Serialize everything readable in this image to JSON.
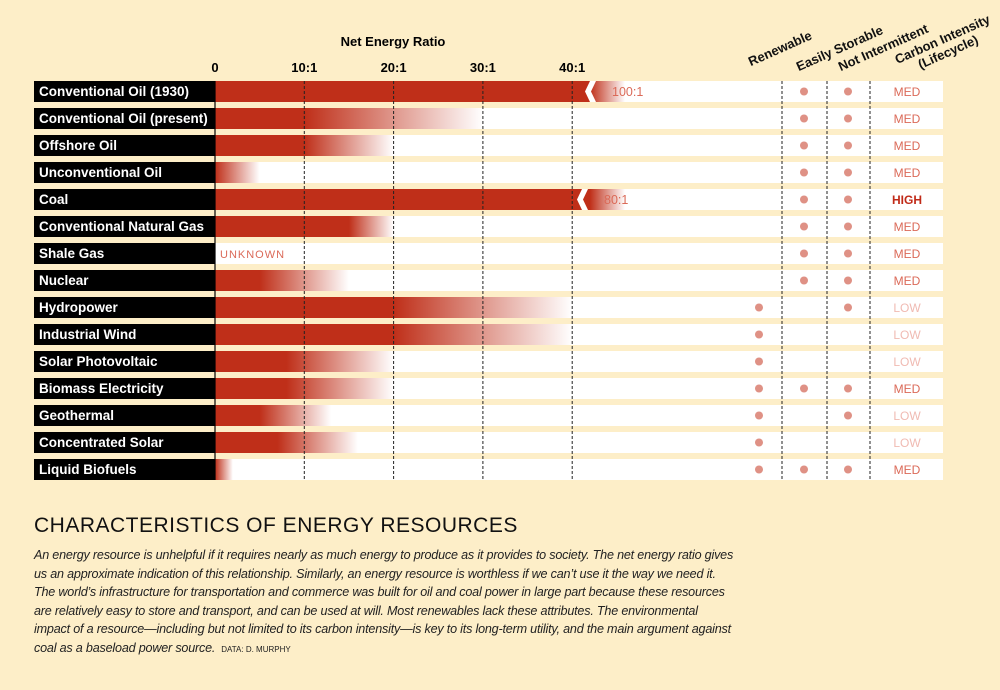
{
  "chart_data": {
    "type": "bar",
    "title": "Net Energy Ratio",
    "xlim": [
      0,
      40
    ],
    "ticks": [
      "0",
      "10:1",
      "20:1",
      "30:1",
      "40:1"
    ],
    "grid": true,
    "colors": {
      "bar": "#bf2f19",
      "dot": "#df9185",
      "med": "#db6a58",
      "low": "#f0bab2",
      "high": "#c02a18"
    },
    "columns": [
      "Renewable",
      "Easily Storable",
      "Not Intermittent",
      "Carbon Intensity (Lifecycle)"
    ],
    "rows": [
      {
        "name": "Conventional Oil (1930)",
        "solid": 40,
        "fade": 42,
        "break_label": "100:1",
        "renewable": false,
        "storable": true,
        "not_intermittent": true,
        "carbon": "MED"
      },
      {
        "name": "Conventional Oil (present)",
        "solid": 10,
        "fade": 30,
        "renewable": false,
        "storable": true,
        "not_intermittent": true,
        "carbon": "MED"
      },
      {
        "name": "Offshore Oil",
        "solid": 10,
        "fade": 20,
        "renewable": false,
        "storable": true,
        "not_intermittent": true,
        "carbon": "MED"
      },
      {
        "name": "Unconventional Oil",
        "solid": 0,
        "fade": 5,
        "renewable": false,
        "storable": true,
        "not_intermittent": true,
        "carbon": "MED"
      },
      {
        "name": "Coal",
        "solid": 40,
        "fade": 42,
        "break_label": "80:1",
        "renewable": false,
        "storable": true,
        "not_intermittent": true,
        "carbon": "HIGH"
      },
      {
        "name": "Conventional Natural Gas",
        "solid": 15,
        "fade": 20,
        "renewable": false,
        "storable": true,
        "not_intermittent": true,
        "carbon": "MED"
      },
      {
        "name": "Shale Gas",
        "unknown_label": "UNKNOWN",
        "renewable": false,
        "storable": true,
        "not_intermittent": true,
        "carbon": "MED"
      },
      {
        "name": "Nuclear",
        "solid": 5,
        "fade": 15,
        "renewable": false,
        "storable": true,
        "not_intermittent": true,
        "carbon": "MED"
      },
      {
        "name": "Hydropower",
        "solid": 20,
        "fade": 40,
        "renewable": true,
        "storable": false,
        "not_intermittent": true,
        "carbon": "LOW"
      },
      {
        "name": "Industrial Wind",
        "solid": 20,
        "fade": 40,
        "renewable": true,
        "storable": false,
        "not_intermittent": false,
        "carbon": "LOW"
      },
      {
        "name": "Solar Photovoltaic",
        "solid": 8,
        "fade": 20,
        "renewable": true,
        "storable": false,
        "not_intermittent": false,
        "carbon": "LOW"
      },
      {
        "name": "Biomass Electricity",
        "solid": 8,
        "fade": 20,
        "renewable": true,
        "storable": true,
        "not_intermittent": true,
        "carbon": "MED"
      },
      {
        "name": "Geothermal",
        "solid": 5,
        "fade": 13,
        "renewable": true,
        "storable": false,
        "not_intermittent": true,
        "carbon": "LOW"
      },
      {
        "name": "Concentrated Solar",
        "solid": 7,
        "fade": 16,
        "renewable": true,
        "storable": false,
        "not_intermittent": false,
        "carbon": "LOW"
      },
      {
        "name": "Liquid Biofuels",
        "solid": 0,
        "fade": 2,
        "renewable": true,
        "storable": true,
        "not_intermittent": true,
        "carbon": "MED"
      }
    ]
  },
  "text": {
    "heading": "CHARACTERISTICS OF ENERGY RESOURCES",
    "body": "An energy resource is unhelpful if it requires nearly as much energy to produce as it provides to society. The net energy ratio gives us an approximate indication of this relationship. Similarly, an energy resource is worthless if we can’t use it the way we need it. The world’s infrastructure for transportation and commerce was built for oil and coal power in large part because these resources are relatively easy to store and transport, and can be used at will. Most renewables lack these attributes. The environmental impact of a resource—including but not limited to its carbon intensity—is key to its long-term utility, and the main argument against coal as a baseload power source.",
    "credit": "DATA: D. MURPHY"
  }
}
